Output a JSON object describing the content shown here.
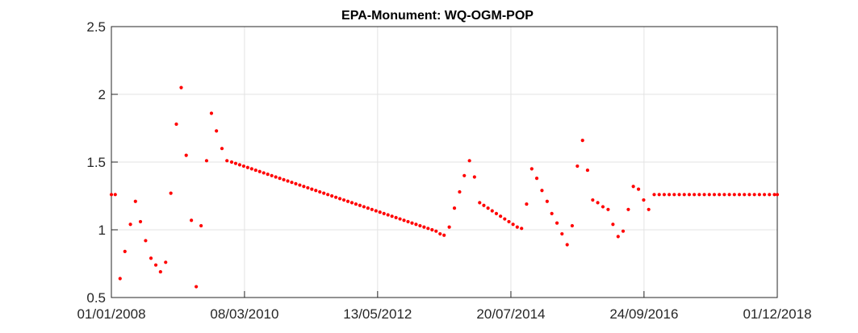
{
  "chart_data": {
    "type": "scatter",
    "title": "EPA-Monument: WQ-OGM-POP",
    "xlabel": "",
    "ylabel": "",
    "x_type": "date",
    "xlim": [
      "2008-01-01",
      "2018-12-01"
    ],
    "ylim": [
      0.5,
      2.5
    ],
    "xticks": [
      "2008-01-01",
      "2010-03-08",
      "2012-05-13",
      "2014-07-20",
      "2016-09-24",
      "2018-12-01"
    ],
    "xtick_labels": [
      "01/01/2008",
      "08/03/2010",
      "13/05/2012",
      "20/07/2014",
      "24/09/2016",
      "01/12/2018"
    ],
    "yticks": [
      0.5,
      1,
      1.5,
      2,
      2.5
    ],
    "ytick_labels": [
      "0.5",
      "1",
      "1.5",
      "2",
      "2.5"
    ],
    "grid": true,
    "marker_color": "#ff0000",
    "series": [
      {
        "points": [
          [
            "2008-01-01",
            1.26
          ],
          [
            "2008-01-24",
            1.26
          ],
          [
            "2008-02-22",
            0.64
          ],
          [
            "2008-03-22",
            0.84
          ],
          [
            "2008-04-24",
            1.04
          ],
          [
            "2008-05-24",
            1.21
          ],
          [
            "2008-06-23",
            1.06
          ],
          [
            "2008-07-24",
            0.92
          ],
          [
            "2008-08-25",
            0.79
          ],
          [
            "2008-09-23",
            0.74
          ],
          [
            "2008-10-21",
            0.69
          ],
          [
            "2008-11-21",
            0.76
          ],
          [
            "2008-12-22",
            1.27
          ],
          [
            "2009-01-24",
            1.78
          ],
          [
            "2009-02-22",
            2.05
          ],
          [
            "2009-03-24",
            1.55
          ],
          [
            "2009-04-24",
            1.07
          ],
          [
            "2009-05-23",
            0.58
          ],
          [
            "2009-06-21",
            1.03
          ],
          [
            "2009-07-24",
            1.51
          ],
          [
            "2009-08-22",
            1.86
          ],
          [
            "2009-09-21",
            1.73
          ],
          [
            "2009-10-24",
            1.6
          ],
          [
            "2009-11-23",
            1.51
          ],
          [
            "2009-12-21",
            1.5
          ],
          [
            "2010-01-14",
            1.49
          ],
          [
            "2010-02-07",
            1.48
          ],
          [
            "2010-03-03",
            1.47
          ],
          [
            "2010-03-27",
            1.46
          ],
          [
            "2010-04-20",
            1.45
          ],
          [
            "2010-05-14",
            1.44
          ],
          [
            "2010-06-07",
            1.43
          ],
          [
            "2010-07-01",
            1.42
          ],
          [
            "2010-07-25",
            1.41
          ],
          [
            "2010-08-18",
            1.4
          ],
          [
            "2010-09-11",
            1.39
          ],
          [
            "2010-10-05",
            1.38
          ],
          [
            "2010-10-29",
            1.37
          ],
          [
            "2010-11-22",
            1.36
          ],
          [
            "2010-12-16",
            1.35
          ],
          [
            "2011-01-09",
            1.34
          ],
          [
            "2011-02-02",
            1.33
          ],
          [
            "2011-02-26",
            1.32
          ],
          [
            "2011-03-22",
            1.31
          ],
          [
            "2011-04-15",
            1.3
          ],
          [
            "2011-05-09",
            1.29
          ],
          [
            "2011-06-02",
            1.28
          ],
          [
            "2011-06-26",
            1.27
          ],
          [
            "2011-07-20",
            1.26
          ],
          [
            "2011-08-13",
            1.25
          ],
          [
            "2011-09-06",
            1.24
          ],
          [
            "2011-09-30",
            1.23
          ],
          [
            "2011-10-24",
            1.22
          ],
          [
            "2011-11-17",
            1.21
          ],
          [
            "2011-12-11",
            1.2
          ],
          [
            "2012-01-04",
            1.19
          ],
          [
            "2012-01-28",
            1.18
          ],
          [
            "2012-02-21",
            1.17
          ],
          [
            "2012-03-16",
            1.16
          ],
          [
            "2012-04-09",
            1.15
          ],
          [
            "2012-05-03",
            1.14
          ],
          [
            "2012-05-27",
            1.13
          ],
          [
            "2012-06-20",
            1.12
          ],
          [
            "2012-07-14",
            1.11
          ],
          [
            "2012-08-07",
            1.1
          ],
          [
            "2012-08-31",
            1.09
          ],
          [
            "2012-09-24",
            1.08
          ],
          [
            "2012-10-18",
            1.07
          ],
          [
            "2012-11-11",
            1.06
          ],
          [
            "2012-12-05",
            1.05
          ],
          [
            "2012-12-29",
            1.04
          ],
          [
            "2013-01-22",
            1.03
          ],
          [
            "2013-02-15",
            1.02
          ],
          [
            "2013-03-11",
            1.01
          ],
          [
            "2013-04-04",
            1.0
          ],
          [
            "2013-04-28",
            0.99
          ],
          [
            "2013-05-22",
            0.97
          ],
          [
            "2013-06-15",
            0.96
          ],
          [
            "2013-07-16",
            1.02
          ],
          [
            "2013-08-16",
            1.16
          ],
          [
            "2013-09-16",
            1.28
          ],
          [
            "2013-10-14",
            1.4
          ],
          [
            "2013-11-14",
            1.51
          ],
          [
            "2013-12-14",
            1.39
          ],
          [
            "2014-01-14",
            1.2
          ],
          [
            "2014-02-08",
            1.18
          ],
          [
            "2014-03-05",
            1.16
          ],
          [
            "2014-03-30",
            1.14
          ],
          [
            "2014-04-24",
            1.12
          ],
          [
            "2014-05-19",
            1.1
          ],
          [
            "2014-06-13",
            1.08
          ],
          [
            "2014-07-08",
            1.06
          ],
          [
            "2014-08-02",
            1.04
          ],
          [
            "2014-08-27",
            1.02
          ],
          [
            "2014-09-22",
            1.01
          ],
          [
            "2014-10-22",
            1.19
          ],
          [
            "2014-11-22",
            1.45
          ],
          [
            "2014-12-22",
            1.38
          ],
          [
            "2015-01-22",
            1.29
          ],
          [
            "2015-02-22",
            1.21
          ],
          [
            "2015-03-22",
            1.12
          ],
          [
            "2015-04-22",
            1.05
          ],
          [
            "2015-05-22",
            0.97
          ],
          [
            "2015-06-22",
            0.89
          ],
          [
            "2015-07-22",
            1.03
          ],
          [
            "2015-08-22",
            1.47
          ],
          [
            "2015-09-22",
            1.66
          ],
          [
            "2015-10-22",
            1.44
          ],
          [
            "2015-11-22",
            1.22
          ],
          [
            "2015-12-22",
            1.2
          ],
          [
            "2016-01-22",
            1.17
          ],
          [
            "2016-02-22",
            1.15
          ],
          [
            "2016-03-22",
            1.04
          ],
          [
            "2016-04-22",
            0.95
          ],
          [
            "2016-05-22",
            0.99
          ],
          [
            "2016-06-22",
            1.15
          ],
          [
            "2016-07-22",
            1.32
          ],
          [
            "2016-08-22",
            1.3
          ],
          [
            "2016-09-22",
            1.22
          ],
          [
            "2016-10-22",
            1.15
          ],
          [
            "2016-11-24",
            1.26
          ],
          [
            "2016-12-24",
            1.26
          ],
          [
            "2017-01-23",
            1.26
          ],
          [
            "2017-02-22",
            1.26
          ],
          [
            "2017-03-24",
            1.26
          ],
          [
            "2017-04-23",
            1.26
          ],
          [
            "2017-05-23",
            1.26
          ],
          [
            "2017-06-22",
            1.26
          ],
          [
            "2017-07-22",
            1.26
          ],
          [
            "2017-08-21",
            1.26
          ],
          [
            "2017-09-20",
            1.26
          ],
          [
            "2017-10-20",
            1.26
          ],
          [
            "2017-11-19",
            1.26
          ],
          [
            "2017-12-19",
            1.26
          ],
          [
            "2018-01-18",
            1.26
          ],
          [
            "2018-02-17",
            1.26
          ],
          [
            "2018-03-19",
            1.26
          ],
          [
            "2018-04-18",
            1.26
          ],
          [
            "2018-05-18",
            1.26
          ],
          [
            "2018-06-17",
            1.26
          ],
          [
            "2018-07-17",
            1.26
          ],
          [
            "2018-08-16",
            1.26
          ],
          [
            "2018-09-15",
            1.26
          ],
          [
            "2018-10-15",
            1.26
          ],
          [
            "2018-11-14",
            1.26
          ],
          [
            "2018-12-01",
            1.26
          ]
        ]
      }
    ]
  }
}
